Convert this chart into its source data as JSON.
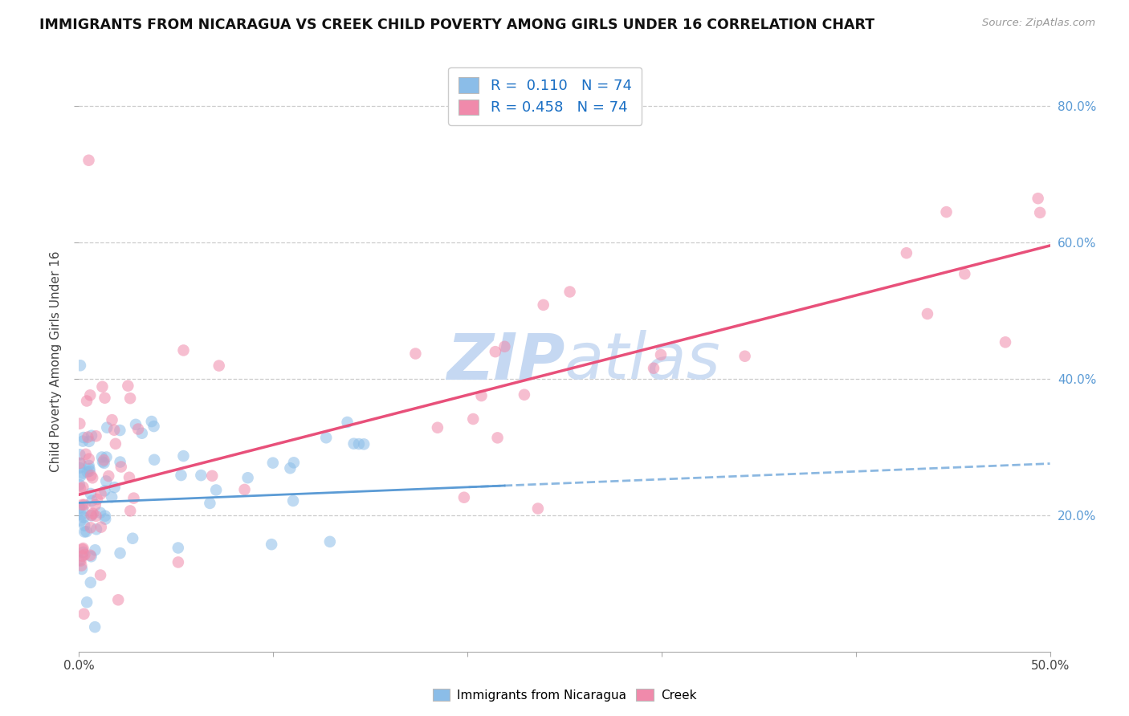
{
  "title": "IMMIGRANTS FROM NICARAGUA VS CREEK CHILD POVERTY AMONG GIRLS UNDER 16 CORRELATION CHART",
  "source": "Source: ZipAtlas.com",
  "ylabel": "Child Poverty Among Girls Under 16",
  "xlim": [
    0.0,
    0.5
  ],
  "ylim": [
    0.0,
    0.85
  ],
  "R_nicaragua": 0.11,
  "N_nicaragua": 74,
  "R_creek": 0.458,
  "N_creek": 74,
  "color_nicaragua": "#8bbde8",
  "color_creek": "#f08aab",
  "color_trend_nicaragua": "#5b9bd5",
  "color_trend_creek": "#e8507a",
  "background_color": "#ffffff",
  "grid_color": "#cccccc",
  "watermark_color": "#c5d8f2",
  "ytick_positions": [
    0.2,
    0.4,
    0.6,
    0.8
  ],
  "ytick_labels": [
    "20.0%",
    "40.0%",
    "60.0%",
    "80.0%"
  ],
  "nic_intercept": 0.218,
  "nic_slope": 0.11,
  "crk_intercept": 0.235,
  "crk_slope": 0.73
}
